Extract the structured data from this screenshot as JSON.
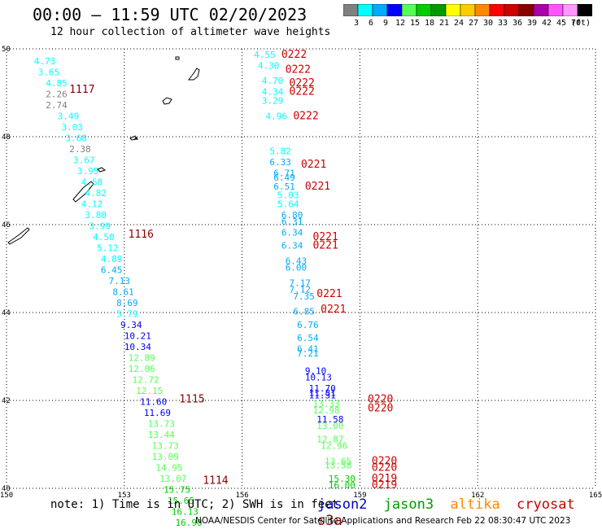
{
  "header": {
    "title": "00:00 – 11:59 UTC 02/20/2023",
    "subtitle": "12 hour collection of altimeter wave heights"
  },
  "colorbar": {
    "unit": "(ft)",
    "bins": [
      {
        "color": "#808080",
        "label": "3"
      },
      {
        "color": "#00ffff",
        "label": "6"
      },
      {
        "color": "#00aaff",
        "label": "9"
      },
      {
        "color": "#0000ff",
        "label": "12"
      },
      {
        "color": "#55ff55",
        "label": "15"
      },
      {
        "color": "#00cc00",
        "label": "18"
      },
      {
        "color": "#009900",
        "label": "21"
      },
      {
        "color": "#ffff00",
        "label": "24"
      },
      {
        "color": "#ffcc00",
        "label": "27"
      },
      {
        "color": "#ff8800",
        "label": "30"
      },
      {
        "color": "#ff0000",
        "label": "33"
      },
      {
        "color": "#cc0000",
        "label": "36"
      },
      {
        "color": "#880000",
        "label": "39"
      },
      {
        "color": "#aa00aa",
        "label": "42"
      },
      {
        "color": "#ff55ff",
        "label": "45"
      },
      {
        "color": "#ff99ff",
        "label": "70"
      },
      {
        "color": "#000000",
        "label": ""
      }
    ]
  },
  "footer": {
    "note": "note:  1) Time is in UTC; 2) SWH is in feet",
    "credit": "NOAA/NESDIS Center for Satellite Applications and Research    Feb 22 08:30:47 UTC 2023",
    "satellites": [
      {
        "name": "jason2",
        "color": "#0000cc"
      },
      {
        "name": "jason3",
        "color": "#009900"
      },
      {
        "name": "altika",
        "color": "#ff8800"
      },
      {
        "name": "cryosat",
        "color": "#cc0000"
      },
      {
        "name": "s3a",
        "color": "#880000"
      }
    ]
  },
  "chart_data": {
    "type": "scatter",
    "xlim": [
      150,
      165
    ],
    "ylim": [
      40,
      50
    ],
    "x_ticks": [
      "150",
      "153",
      "156",
      "159",
      "162",
      "165"
    ],
    "y_ticks": [
      "40",
      "42",
      "44",
      "46",
      "48",
      "50"
    ],
    "grid": true,
    "time_labels": [
      {
        "text": "1117",
        "lon": 151.6,
        "lat": 49.0,
        "color": "#880000"
      },
      {
        "text": "1116",
        "lon": 153.1,
        "lat": 45.7,
        "color": "#880000"
      },
      {
        "text": "1115",
        "lon": 154.4,
        "lat": 41.95,
        "color": "#880000"
      },
      {
        "text": "1114",
        "lon": 155.0,
        "lat": 40.1,
        "color": "#880000"
      },
      {
        "text": "0222",
        "lon": 157.0,
        "lat": 49.8,
        "color": "#cc0000"
      },
      {
        "text": "0222",
        "lon": 157.1,
        "lat": 49.45,
        "color": "#cc0000"
      },
      {
        "text": "0222",
        "lon": 157.2,
        "lat": 49.15,
        "color": "#cc0000"
      },
      {
        "text": "0222",
        "lon": 157.2,
        "lat": 48.95,
        "color": "#cc0000"
      },
      {
        "text": "0222",
        "lon": 157.3,
        "lat": 48.4,
        "color": "#cc0000"
      },
      {
        "text": "0221",
        "lon": 157.5,
        "lat": 47.3,
        "color": "#cc0000"
      },
      {
        "text": "0221",
        "lon": 157.6,
        "lat": 46.8,
        "color": "#cc0000"
      },
      {
        "text": "0221",
        "lon": 157.8,
        "lat": 45.65,
        "color": "#cc0000"
      },
      {
        "text": "0221",
        "lon": 157.8,
        "lat": 45.45,
        "color": "#cc0000"
      },
      {
        "text": "0221",
        "lon": 157.9,
        "lat": 44.35,
        "color": "#cc0000"
      },
      {
        "text": "0221",
        "lon": 158.0,
        "lat": 44.0,
        "color": "#cc0000"
      },
      {
        "text": "0220",
        "lon": 159.2,
        "lat": 41.95,
        "color": "#cc0000"
      },
      {
        "text": "0220",
        "lon": 159.2,
        "lat": 41.75,
        "color": "#cc0000"
      },
      {
        "text": "0220",
        "lon": 159.3,
        "lat": 40.55,
        "color": "#cc0000"
      },
      {
        "text": "0220",
        "lon": 159.3,
        "lat": 40.4,
        "color": "#cc0000"
      },
      {
        "text": "0219",
        "lon": 159.3,
        "lat": 40.15,
        "color": "#cc0000"
      },
      {
        "text": "0219",
        "lon": 159.3,
        "lat": 40.0,
        "color": "#cc0000"
      }
    ],
    "series": [
      {
        "name": "jason3",
        "points": [
          {
            "lon": 150.7,
            "lat": 49.65,
            "value": 4.73
          },
          {
            "lon": 150.8,
            "lat": 49.4,
            "value": 3.65
          },
          {
            "lon": 151.0,
            "lat": 49.15,
            "value": 4.85
          },
          {
            "lon": 151.0,
            "lat": 48.9,
            "value": 2.26
          },
          {
            "lon": 151.0,
            "lat": 48.65,
            "value": 2.74
          },
          {
            "lon": 151.3,
            "lat": 48.4,
            "value": 3.49
          },
          {
            "lon": 151.4,
            "lat": 48.15,
            "value": 3.03
          },
          {
            "lon": 151.5,
            "lat": 47.9,
            "value": 3.68
          },
          {
            "lon": 151.6,
            "lat": 47.65,
            "value": 2.38
          },
          {
            "lon": 151.7,
            "lat": 47.4,
            "value": 3.67
          },
          {
            "lon": 151.8,
            "lat": 47.15,
            "value": 3.95
          },
          {
            "lon": 151.9,
            "lat": 46.9,
            "value": 4.58
          },
          {
            "lon": 152.0,
            "lat": 46.65,
            "value": 4.82
          },
          {
            "lon": 151.9,
            "lat": 46.4,
            "value": 4.12
          },
          {
            "lon": 152.0,
            "lat": 46.15,
            "value": 3.8
          },
          {
            "lon": 152.1,
            "lat": 45.9,
            "value": 3.99
          },
          {
            "lon": 152.2,
            "lat": 45.65,
            "value": 4.5
          },
          {
            "lon": 152.3,
            "lat": 45.4,
            "value": 5.12
          },
          {
            "lon": 152.4,
            "lat": 45.15,
            "value": 4.89
          },
          {
            "lon": 152.4,
            "lat": 44.9,
            "value": 6.45
          },
          {
            "lon": 152.6,
            "lat": 44.65,
            "value": 7.13
          },
          {
            "lon": 152.7,
            "lat": 44.4,
            "value": 8.61
          },
          {
            "lon": 152.8,
            "lat": 44.15,
            "value": 8.69
          },
          {
            "lon": 152.8,
            "lat": 43.9,
            "value": 5.79
          },
          {
            "lon": 152.9,
            "lat": 43.65,
            "value": 9.34
          },
          {
            "lon": 153.0,
            "lat": 43.4,
            "value": 10.21
          },
          {
            "lon": 153.0,
            "lat": 43.15,
            "value": 10.34
          },
          {
            "lon": 153.1,
            "lat": 42.9,
            "value": 12.89
          },
          {
            "lon": 153.1,
            "lat": 42.65,
            "value": 12.06
          },
          {
            "lon": 153.2,
            "lat": 42.4,
            "value": 12.72
          },
          {
            "lon": 153.3,
            "lat": 42.15,
            "value": 12.15
          },
          {
            "lon": 153.4,
            "lat": 41.9,
            "value": 11.6
          },
          {
            "lon": 153.5,
            "lat": 41.65,
            "value": 11.69
          },
          {
            "lon": 153.6,
            "lat": 41.4,
            "value": 13.73
          },
          {
            "lon": 153.6,
            "lat": 41.15,
            "value": 13.44
          },
          {
            "lon": 153.7,
            "lat": 40.9,
            "value": 13.73
          },
          {
            "lon": 153.7,
            "lat": 40.65,
            "value": 13.09
          },
          {
            "lon": 153.8,
            "lat": 40.4,
            "value": 14.95
          },
          {
            "lon": 153.9,
            "lat": 40.15,
            "value": 13.07
          },
          {
            "lon": 154.0,
            "lat": 39.9,
            "value": 15.75
          },
          {
            "lon": 154.1,
            "lat": 39.65,
            "value": 15.65
          },
          {
            "lon": 154.2,
            "lat": 39.4,
            "value": 16.13
          },
          {
            "lon": 154.3,
            "lat": 39.15,
            "value": 16.9
          }
        ]
      },
      {
        "name": "cryosat",
        "points": [
          {
            "lon": 156.3,
            "lat": 49.8,
            "value": 4.55
          },
          {
            "lon": 156.4,
            "lat": 49.55,
            "value": 4.3
          },
          {
            "lon": 156.5,
            "lat": 49.2,
            "value": 4.7
          },
          {
            "lon": 156.5,
            "lat": 48.95,
            "value": 4.34
          },
          {
            "lon": 156.5,
            "lat": 48.75,
            "value": 3.29
          },
          {
            "lon": 156.6,
            "lat": 48.4,
            "value": 4.96
          },
          {
            "lon": 156.7,
            "lat": 47.6,
            "value": 5.82
          },
          {
            "lon": 156.7,
            "lat": 47.35,
            "value": 6.33
          },
          {
            "lon": 156.8,
            "lat": 47.1,
            "value": 6.71
          },
          {
            "lon": 156.8,
            "lat": 47.0,
            "value": 6.49
          },
          {
            "lon": 156.8,
            "lat": 46.8,
            "value": 6.51
          },
          {
            "lon": 156.9,
            "lat": 46.6,
            "value": 5.03
          },
          {
            "lon": 156.9,
            "lat": 46.4,
            "value": 5.64
          },
          {
            "lon": 157.0,
            "lat": 46.15,
            "value": 6.8
          },
          {
            "lon": 157.0,
            "lat": 46.0,
            "value": 6.31
          },
          {
            "lon": 157.0,
            "lat": 45.75,
            "value": 6.34
          },
          {
            "lon": 157.0,
            "lat": 45.45,
            "value": 6.34
          },
          {
            "lon": 157.1,
            "lat": 45.1,
            "value": 6.43
          },
          {
            "lon": 157.1,
            "lat": 44.95,
            "value": 6.0
          },
          {
            "lon": 157.2,
            "lat": 44.6,
            "value": 7.17
          },
          {
            "lon": 157.2,
            "lat": 44.45,
            "value": 7.12
          },
          {
            "lon": 157.3,
            "lat": 44.3,
            "value": 7.35
          },
          {
            "lon": 157.3,
            "lat": 43.95,
            "value": 6.85
          },
          {
            "lon": 157.4,
            "lat": 43.65,
            "value": 6.76
          },
          {
            "lon": 157.4,
            "lat": 43.35,
            "value": 6.54
          },
          {
            "lon": 157.4,
            "lat": 43.1,
            "value": 6.41
          },
          {
            "lon": 157.4,
            "lat": 43.0,
            "value": 7.21
          },
          {
            "lon": 157.6,
            "lat": 42.6,
            "value": 9.1
          },
          {
            "lon": 157.6,
            "lat": 42.45,
            "value": 10.13
          },
          {
            "lon": 157.7,
            "lat": 42.2,
            "value": 11.7
          },
          {
            "lon": 157.7,
            "lat": 42.1,
            "value": 11.81
          },
          {
            "lon": 157.7,
            "lat": 42.05,
            "value": 11.31
          },
          {
            "lon": 157.8,
            "lat": 41.85,
            "value": 13.33
          },
          {
            "lon": 157.8,
            "lat": 41.7,
            "value": 12.98
          },
          {
            "lon": 157.9,
            "lat": 41.5,
            "value": 11.58
          },
          {
            "lon": 157.9,
            "lat": 41.35,
            "value": 13.0
          },
          {
            "lon": 157.9,
            "lat": 41.05,
            "value": 12.87
          },
          {
            "lon": 158.0,
            "lat": 40.9,
            "value": 12.96
          },
          {
            "lon": 158.1,
            "lat": 40.55,
            "value": 13.65
          },
          {
            "lon": 158.1,
            "lat": 40.45,
            "value": 13.58
          },
          {
            "lon": 158.2,
            "lat": 40.15,
            "value": 15.3
          },
          {
            "lon": 158.2,
            "lat": 40.0,
            "value": 16.0
          }
        ]
      }
    ]
  }
}
